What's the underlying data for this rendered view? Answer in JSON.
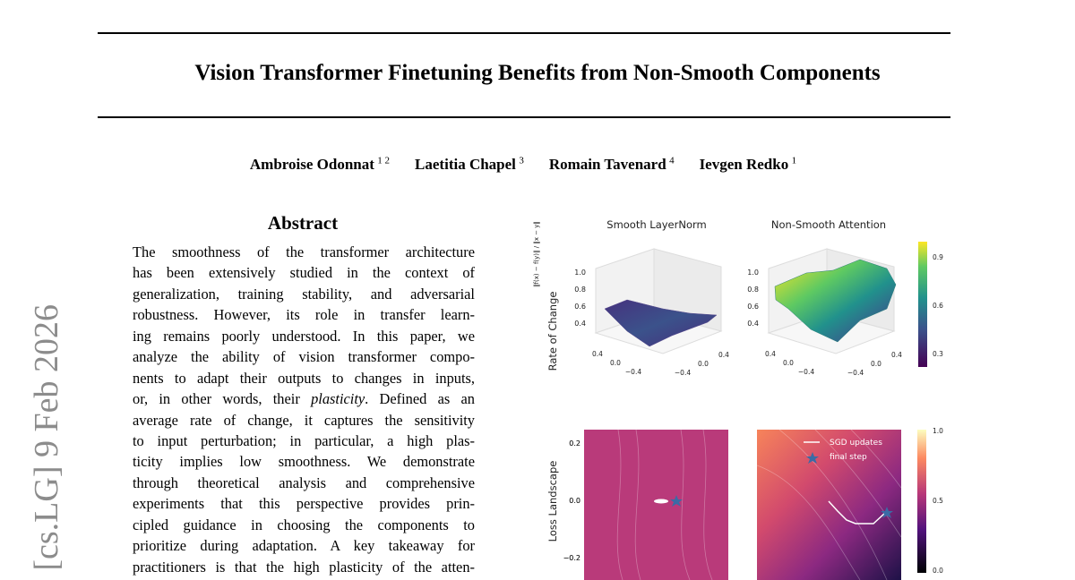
{
  "header": {
    "title": "Vision Transformer Finetuning Benefits from Non-Smooth Components"
  },
  "authors": [
    {
      "name": "Ambroise Odonnat",
      "affil": "1 2"
    },
    {
      "name": "Laetitia Chapel",
      "affil": "3"
    },
    {
      "name": "Romain Tavenard",
      "affil": "4"
    },
    {
      "name": "Ievgen Redko",
      "affil": "1"
    }
  ],
  "arxiv_stamp": "[cs.LG]  9 Feb 2026",
  "abstract": {
    "heading": "Abstract",
    "lines": [
      "The smoothness of the transformer architecture",
      "has been extensively studied in the context of",
      "generalization, training stability, and adversarial",
      "robustness.  However, its role in transfer learn-",
      "ing remains poorly understood. In this paper, we",
      "analyze the ability of vision transformer compo-",
      "nents to adapt their outputs to changes in inputs,",
      {
        "before": "or, in other words, their",
        "emphasis": "plasticity",
        "after": ". Defined as an"
      },
      "average rate of change, it captures the sensitivity",
      "to input perturbation; in particular, a high plas-",
      "ticity implies low smoothness. We demonstrate",
      "through theoretical analysis and comprehensive",
      "experiments that this perspective provides prin-",
      "cipled guidance in choosing the components to",
      "prioritize during adaptation. A key takeaway for",
      "practitioners is that the high plasticity of the atten-"
    ]
  },
  "figure": {
    "panel_titles": [
      "Smooth LayerNorm",
      "Non-Smooth Attention"
    ],
    "row_labels": [
      "Rate of Change",
      "Loss Landscape"
    ],
    "rate_formula": "‖f(x) − f(y)‖ / ‖x − y‖",
    "z_ticks": [
      "1.0",
      "0.8",
      "0.6",
      "0.4"
    ],
    "base_ticks_left": [
      "0.4",
      "0.0",
      "−0.4"
    ],
    "base_ticks_right": [
      "−0.4",
      "0.0",
      "0.4"
    ],
    "colorbar_top_ticks": [
      "0.9",
      "0.6",
      "0.3"
    ],
    "landscape_y_ticks": [
      "0.2",
      "0.0",
      "−0.2"
    ],
    "colorbar_bottom_ticks": [
      "1.0",
      "0.5",
      "0.0"
    ],
    "legend": [
      "SGD updates",
      "final step"
    ]
  }
}
